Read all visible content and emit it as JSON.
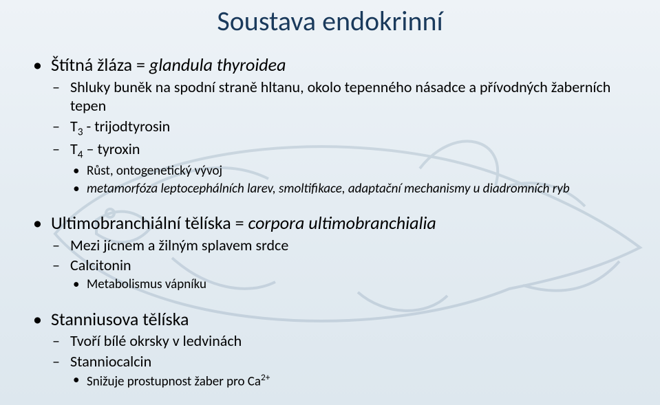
{
  "title": "Soustava endokrinní",
  "sections": [
    {
      "heading_plain": "Štítná žláza = ",
      "heading_italic": "glandula thyroidea",
      "sub": [
        {
          "text": "Shluky buněk na spodní straně hltanu, okolo tepenného násadce a přívodných žaberních tepen"
        },
        {
          "text_html": "T<sub>3</sub> - trijodtyrosin"
        },
        {
          "text_html": "T<sub>4</sub> – tyroxin",
          "sub3": [
            {
              "text": "Růst, ontogenetický vývoj"
            },
            {
              "text_italic": "metamorfóza leptocephálních larev, smoltifikace, adaptační mechanismy u diadromních ryb"
            }
          ]
        }
      ]
    },
    {
      "heading_plain": "Ultimobranchiální tělíska = ",
      "heading_italic": "corpora ultimobranchialia",
      "sub": [
        {
          "text": "Mezi jícnem a žilným splavem srdce"
        },
        {
          "text": "Calcitonin",
          "sub3": [
            {
              "text": "Metabolismus vápníku"
            }
          ]
        }
      ]
    },
    {
      "heading_plain": "Stanniusova tělíska",
      "heading_italic": "",
      "sub": [
        {
          "text": "Tvoří bílé okrsky v ledvinách"
        },
        {
          "text": "Stanniocalcin",
          "sub3": [
            {
              "text_html": "Snižuje prostupnost žaber pro Ca<sup>2+</sup>"
            }
          ]
        }
      ]
    }
  ],
  "colors": {
    "title_color": "#1a3a5c",
    "text_color": "#000000",
    "bg_top": "#eef3f7",
    "bg_bottom": "#dde7ee",
    "fish_stroke": "#2b5175"
  }
}
